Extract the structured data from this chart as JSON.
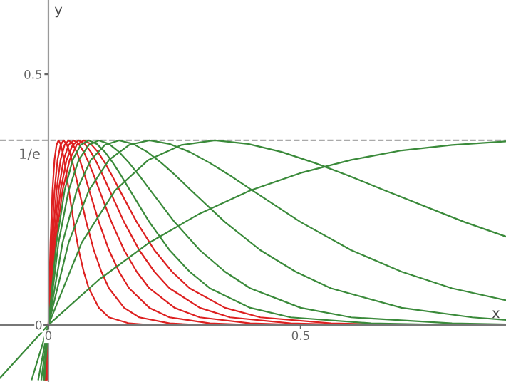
{
  "chart_data": {
    "type": "line",
    "xlabel": "x",
    "ylabel": "y",
    "xlim": [
      -0.096,
      0.907
    ],
    "ylim": [
      -0.114,
      0.648
    ],
    "xticks": [
      0,
      0.5
    ],
    "yticks": [
      0,
      0.5
    ],
    "grid": false,
    "line_style": "solid",
    "marker": "none",
    "ref_lines": [
      {
        "axis": "y",
        "value": 0.368,
        "label": "1/e",
        "color": "#aaaaaa",
        "line_style": "dashed"
      }
    ],
    "series": [
      {
        "color": "#dd2020",
        "x": [
          -0.002,
          0,
          0.004,
          0.008,
          0.012,
          0.016,
          0.02,
          0.024,
          0.028,
          0.032,
          0.036,
          0.04,
          0.05,
          0.06,
          0.07,
          0.08,
          0.1,
          0.12,
          0.16,
          0.2,
          0.3,
          0.4,
          0.907
        ],
        "values": [
          -0.109,
          0,
          0.164,
          0.268,
          0.329,
          0.359,
          0.368,
          0.361,
          0.345,
          0.323,
          0.298,
          0.271,
          0.205,
          0.149,
          0.106,
          0.073,
          0.034,
          0.015,
          0.003,
          0.0,
          0,
          0,
          0
        ]
      },
      {
        "color": "#dd2020",
        "x": [
          -0.003,
          0,
          0.006,
          0.012,
          0.018,
          0.024,
          0.03,
          0.036,
          0.042,
          0.048,
          0.054,
          0.06,
          0.075,
          0.09,
          0.105,
          0.12,
          0.15,
          0.18,
          0.24,
          0.3,
          0.45,
          0.6,
          0.907
        ],
        "values": [
          -0.109,
          0,
          0.164,
          0.268,
          0.329,
          0.359,
          0.368,
          0.361,
          0.345,
          0.323,
          0.298,
          0.271,
          0.205,
          0.149,
          0.106,
          0.073,
          0.034,
          0.015,
          0.003,
          0.0,
          0,
          0,
          0
        ]
      },
      {
        "color": "#dd2020",
        "x": [
          -0.004,
          0,
          0.008,
          0.016,
          0.024,
          0.032,
          0.04,
          0.048,
          0.056,
          0.064,
          0.072,
          0.08,
          0.1,
          0.12,
          0.14,
          0.16,
          0.2,
          0.24,
          0.32,
          0.4,
          0.6,
          0.8,
          0.907
        ],
        "values": [
          -0.109,
          0,
          0.164,
          0.268,
          0.329,
          0.359,
          0.368,
          0.361,
          0.345,
          0.323,
          0.298,
          0.271,
          0.205,
          0.149,
          0.106,
          0.073,
          0.034,
          0.015,
          0.003,
          0.0,
          0,
          0,
          0
        ]
      },
      {
        "color": "#dd2020",
        "x": [
          -0.005,
          0,
          0.01,
          0.02,
          0.03,
          0.04,
          0.05,
          0.06,
          0.07,
          0.08,
          0.09,
          0.1,
          0.125,
          0.15,
          0.175,
          0.2,
          0.25,
          0.3,
          0.4,
          0.5,
          0.75,
          0.907
        ],
        "values": [
          -0.109,
          0,
          0.164,
          0.268,
          0.329,
          0.359,
          0.368,
          0.361,
          0.345,
          0.323,
          0.298,
          0.271,
          0.205,
          0.149,
          0.106,
          0.073,
          0.034,
          0.015,
          0.003,
          0.0,
          0,
          0
        ]
      },
      {
        "color": "#dd2020",
        "x": [
          -0.006,
          0,
          0.012,
          0.024,
          0.036,
          0.048,
          0.06,
          0.072,
          0.084,
          0.096,
          0.108,
          0.12,
          0.15,
          0.18,
          0.21,
          0.24,
          0.3,
          0.36,
          0.48,
          0.6,
          0.907
        ],
        "values": [
          -0.109,
          0,
          0.164,
          0.268,
          0.329,
          0.359,
          0.368,
          0.361,
          0.345,
          0.323,
          0.298,
          0.271,
          0.205,
          0.149,
          0.106,
          0.073,
          0.034,
          0.015,
          0.003,
          0.0,
          0
        ]
      },
      {
        "color": "#dd2020",
        "x": [
          -0.007,
          0,
          0.014,
          0.028,
          0.042,
          0.056,
          0.07,
          0.084,
          0.098,
          0.112,
          0.126,
          0.14,
          0.175,
          0.21,
          0.245,
          0.28,
          0.35,
          0.42,
          0.56,
          0.7,
          0.907
        ],
        "values": [
          -0.109,
          0,
          0.164,
          0.268,
          0.329,
          0.359,
          0.368,
          0.361,
          0.345,
          0.323,
          0.298,
          0.271,
          0.205,
          0.149,
          0.106,
          0.073,
          0.034,
          0.015,
          0.003,
          0.0,
          0
        ]
      },
      {
        "color": "#3a8a3a",
        "x": [
          -0.008,
          0,
          0.016,
          0.032,
          0.048,
          0.064,
          0.08,
          0.096,
          0.112,
          0.128,
          0.144,
          0.16,
          0.2,
          0.24,
          0.28,
          0.32,
          0.4,
          0.48,
          0.64,
          0.8,
          0.907
        ],
        "values": [
          -0.109,
          0,
          0.164,
          0.268,
          0.329,
          0.359,
          0.368,
          0.361,
          0.345,
          0.323,
          0.298,
          0.271,
          0.205,
          0.149,
          0.106,
          0.073,
          0.034,
          0.015,
          0.003,
          0.0,
          0
        ]
      },
      {
        "color": "#3a8a3a",
        "x": [
          -0.01,
          0,
          0.02,
          0.04,
          0.06,
          0.08,
          0.1,
          0.12,
          0.14,
          0.16,
          0.18,
          0.2,
          0.25,
          0.3,
          0.35,
          0.4,
          0.5,
          0.6,
          0.8,
          0.907
        ],
        "values": [
          -0.109,
          0,
          0.164,
          0.268,
          0.329,
          0.359,
          0.368,
          0.361,
          0.345,
          0.323,
          0.298,
          0.271,
          0.205,
          0.149,
          0.106,
          0.073,
          0.034,
          0.015,
          0.003,
          0.001
        ]
      },
      {
        "color": "#3a8a3a",
        "x": [
          -0.014,
          0,
          0.028,
          0.056,
          0.084,
          0.112,
          0.14,
          0.168,
          0.196,
          0.224,
          0.252,
          0.28,
          0.35,
          0.42,
          0.49,
          0.56,
          0.7,
          0.84,
          0.907
        ],
        "values": [
          -0.109,
          0,
          0.164,
          0.268,
          0.329,
          0.359,
          0.368,
          0.361,
          0.345,
          0.323,
          0.298,
          0.271,
          0.205,
          0.149,
          0.106,
          0.073,
          0.034,
          0.015,
          0.01
        ]
      },
      {
        "color": "#3a8a3a",
        "x": [
          -0.02,
          0,
          0.04,
          0.08,
          0.12,
          0.16,
          0.2,
          0.24,
          0.28,
          0.32,
          0.36,
          0.4,
          0.5,
          0.6,
          0.7,
          0.8,
          0.907
        ],
        "values": [
          -0.109,
          0,
          0.164,
          0.268,
          0.329,
          0.359,
          0.368,
          0.361,
          0.345,
          0.323,
          0.298,
          0.271,
          0.205,
          0.149,
          0.106,
          0.073,
          0.049
        ]
      },
      {
        "color": "#3a8a3a",
        "x": [
          -0.033,
          0,
          0.066,
          0.132,
          0.198,
          0.264,
          0.33,
          0.396,
          0.462,
          0.528,
          0.594,
          0.66,
          0.825,
          0.907
        ],
        "values": [
          -0.109,
          0,
          0.164,
          0.268,
          0.329,
          0.359,
          0.368,
          0.361,
          0.345,
          0.323,
          0.298,
          0.271,
          0.205,
          0.176
        ]
      },
      {
        "color": "#3a8a3a",
        "x": [
          -0.096,
          0,
          0.1,
          0.2,
          0.3,
          0.4,
          0.5,
          0.6,
          0.7,
          0.8,
          0.907
        ],
        "values": [
          -0.106,
          0,
          0.09,
          0.164,
          0.222,
          0.268,
          0.303,
          0.329,
          0.348,
          0.359,
          0.366
        ]
      }
    ]
  }
}
